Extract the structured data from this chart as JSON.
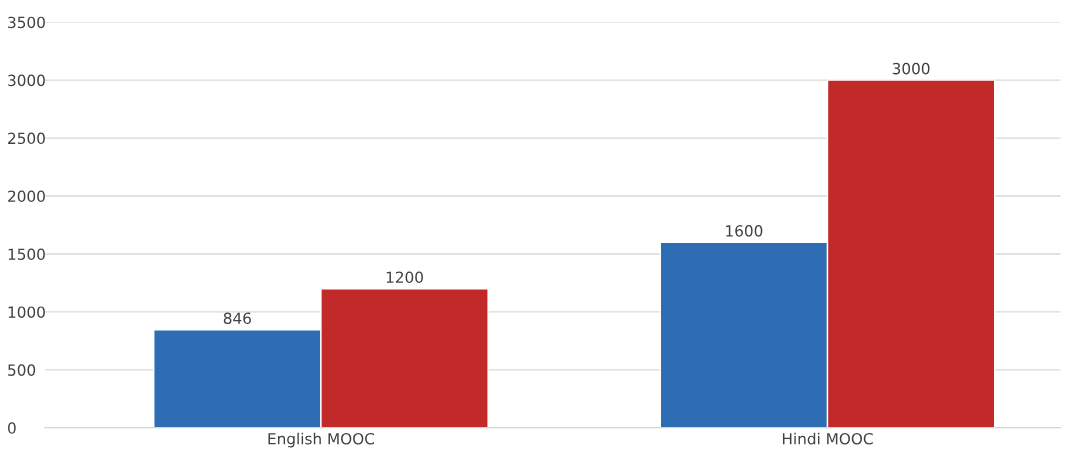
{
  "chart_data": {
    "type": "bar",
    "categories": [
      "English MOOC",
      "Hindi MOOC"
    ],
    "series": [
      {
        "color": "#2e6cb4",
        "values": [
          846,
          1600
        ]
      },
      {
        "color": "#c22a29",
        "values": [
          1200,
          3000
        ]
      }
    ],
    "ylim": [
      0,
      3500
    ],
    "yticks": [
      0,
      500,
      1000,
      1500,
      2000,
      2500,
      3000,
      3500
    ],
    "grid": "y",
    "data_labels": true
  }
}
